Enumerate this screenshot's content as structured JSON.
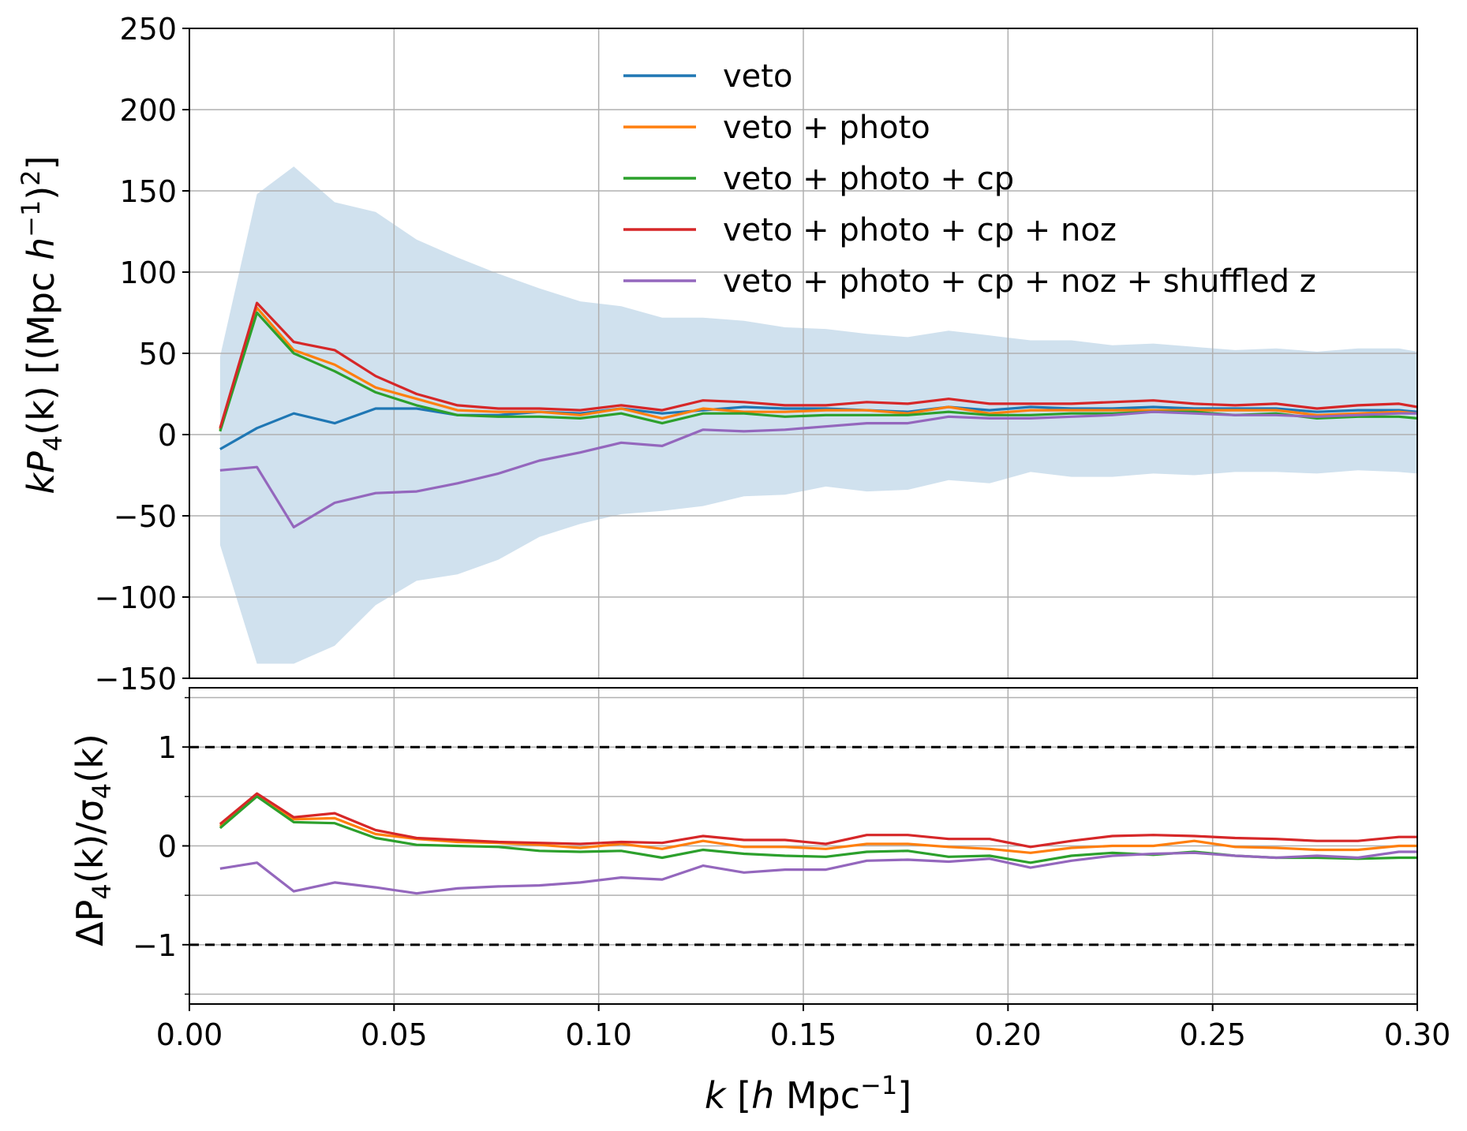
{
  "chart_data": [
    {
      "type": "line",
      "panel": "top",
      "ylabel": "kP4(k) [(Mpc h^-1)^2]",
      "xlim": [
        0.0,
        0.3
      ],
      "ylim": [
        -150,
        250
      ],
      "xticks": [
        "0.00",
        "0.05",
        "0.10",
        "0.15",
        "0.20",
        "0.25",
        "0.30"
      ],
      "yticks": [
        {
          "value": 250,
          "label": "250"
        },
        {
          "value": 200,
          "label": "200"
        },
        {
          "value": 150,
          "label": "150"
        },
        {
          "value": 100,
          "label": "100"
        },
        {
          "value": 50,
          "label": "50"
        },
        {
          "value": 0,
          "label": "0"
        },
        {
          "value": -50,
          "label": "−50"
        },
        {
          "value": -100,
          "label": "−100"
        },
        {
          "value": -150,
          "label": "−150"
        }
      ],
      "grid": true,
      "legend_position": "top-center",
      "x": [
        0.0075,
        0.0165,
        0.0255,
        0.0355,
        0.0455,
        0.0555,
        0.0655,
        0.0755,
        0.0855,
        0.0955,
        0.1055,
        0.1155,
        0.1255,
        0.1355,
        0.1455,
        0.1555,
        0.1655,
        0.1755,
        0.1855,
        0.1955,
        0.2055,
        0.2155,
        0.2255,
        0.2355,
        0.2455,
        0.2555,
        0.2655,
        0.2755,
        0.2855,
        0.2955,
        0.3
      ],
      "band": {
        "name": "uncertainty",
        "color": "#d0e1ee",
        "upper": [
          48,
          148,
          165,
          143,
          137,
          120,
          109,
          99,
          90,
          82,
          79,
          72,
          72,
          70,
          66,
          65,
          62,
          60,
          64,
          61,
          58,
          58,
          55,
          56,
          54,
          52,
          53,
          51,
          53,
          53,
          51
        ],
        "lower": [
          -68,
          -141,
          -141,
          -130,
          -105,
          -90,
          -86,
          -77,
          -63,
          -55,
          -49,
          -47,
          -44,
          -38,
          -37,
          -32,
          -35,
          -34,
          -28,
          -30,
          -23,
          -26,
          -26,
          -24,
          -25,
          -23,
          -23,
          -24,
          -22,
          -23,
          -24
        ]
      },
      "series": [
        {
          "name": "veto",
          "color": "#1f77b4",
          "values": [
            -9,
            4,
            13,
            7,
            16,
            16,
            12,
            12,
            14,
            13,
            16,
            13,
            15,
            17,
            16,
            16,
            15,
            14,
            17,
            15,
            17,
            16,
            16,
            17,
            16,
            16,
            16,
            14,
            15,
            15,
            14
          ]
        },
        {
          "name": "veto + photo",
          "color": "#ff7f0e",
          "values": [
            3,
            78,
            52,
            43,
            29,
            22,
            15,
            14,
            14,
            12,
            16,
            10,
            16,
            14,
            14,
            15,
            15,
            13,
            17,
            13,
            15,
            15,
            15,
            15,
            15,
            15,
            15,
            12,
            13,
            14,
            13
          ]
        },
        {
          "name": "veto + photo + cp",
          "color": "#2ca02c",
          "values": [
            2,
            75,
            50,
            39,
            26,
            18,
            12,
            11,
            11,
            10,
            13,
            7,
            13,
            13,
            11,
            12,
            12,
            12,
            14,
            12,
            12,
            13,
            13,
            14,
            14,
            12,
            13,
            10,
            11,
            11,
            10
          ]
        },
        {
          "name": "veto + photo + cp + noz",
          "color": "#d62728",
          "values": [
            4,
            81,
            57,
            52,
            36,
            25,
            18,
            16,
            16,
            15,
            18,
            15,
            21,
            20,
            18,
            18,
            20,
            19,
            22,
            19,
            19,
            19,
            20,
            21,
            19,
            18,
            19,
            16,
            18,
            19,
            17
          ]
        },
        {
          "name": "veto + photo + cp + noz + shuffled z",
          "color": "#9467bd",
          "values": [
            -22,
            -20,
            -57,
            -42,
            -36,
            -35,
            -30,
            -24,
            -16,
            -11,
            -5,
            -7,
            3,
            2,
            3,
            5,
            7,
            7,
            11,
            10,
            10,
            11,
            12,
            14,
            13,
            12,
            12,
            11,
            12,
            13,
            13
          ]
        }
      ]
    },
    {
      "type": "line",
      "panel": "bottom",
      "xlabel": "k [h Mpc^-1]",
      "ylabel": "ΔP4(k)/σ4(k)",
      "xlim": [
        0.0,
        0.3
      ],
      "ylim": [
        -1.6,
        1.6
      ],
      "xticks": [
        "0.00",
        "0.05",
        "0.10",
        "0.15",
        "0.20",
        "0.25",
        "0.30"
      ],
      "yticks": [
        {
          "value": 1,
          "label": "1"
        },
        {
          "value": 0,
          "label": "0"
        },
        {
          "value": -1,
          "label": "−1"
        }
      ],
      "reference_lines": [
        1,
        -1
      ],
      "grid": true,
      "x": [
        0.0075,
        0.0165,
        0.0255,
        0.0355,
        0.0455,
        0.0555,
        0.0655,
        0.0755,
        0.0855,
        0.0955,
        0.1055,
        0.1155,
        0.1255,
        0.1355,
        0.1455,
        0.1555,
        0.1655,
        0.1755,
        0.1855,
        0.1955,
        0.2055,
        0.2155,
        0.2255,
        0.2355,
        0.2455,
        0.2555,
        0.2655,
        0.2755,
        0.2855,
        0.2955,
        0.3
      ],
      "series": [
        {
          "name": "veto + photo",
          "color": "#ff7f0e",
          "values": [
            0.2,
            0.52,
            0.27,
            0.28,
            0.12,
            0.07,
            0.04,
            0.03,
            0.01,
            -0.02,
            0.02,
            -0.03,
            0.05,
            -0.01,
            -0.01,
            -0.03,
            0.02,
            0.02,
            -0.01,
            -0.03,
            -0.07,
            -0.02,
            0.0,
            0.0,
            0.05,
            -0.01,
            -0.02,
            -0.04,
            -0.04,
            0.0,
            0.0
          ]
        },
        {
          "name": "veto + photo + cp",
          "color": "#2ca02c",
          "values": [
            0.18,
            0.5,
            0.24,
            0.23,
            0.08,
            0.01,
            0.0,
            -0.01,
            -0.05,
            -0.06,
            -0.05,
            -0.12,
            -0.04,
            -0.08,
            -0.1,
            -0.11,
            -0.06,
            -0.05,
            -0.11,
            -0.1,
            -0.17,
            -0.1,
            -0.07,
            -0.09,
            -0.06,
            -0.1,
            -0.12,
            -0.12,
            -0.13,
            -0.12,
            -0.12
          ]
        },
        {
          "name": "veto + photo + cp + noz",
          "color": "#d62728",
          "values": [
            0.22,
            0.53,
            0.29,
            0.33,
            0.16,
            0.08,
            0.06,
            0.04,
            0.03,
            0.02,
            0.04,
            0.03,
            0.1,
            0.06,
            0.06,
            0.02,
            0.11,
            0.11,
            0.07,
            0.07,
            -0.01,
            0.05,
            0.1,
            0.11,
            0.1,
            0.08,
            0.07,
            0.05,
            0.05,
            0.09,
            0.09
          ]
        },
        {
          "name": "veto + photo + cp + noz + shuffled z",
          "color": "#9467bd",
          "values": [
            -0.23,
            -0.17,
            -0.46,
            -0.37,
            -0.42,
            -0.48,
            -0.43,
            -0.41,
            -0.4,
            -0.37,
            -0.32,
            -0.34,
            -0.2,
            -0.27,
            -0.24,
            -0.24,
            -0.15,
            -0.14,
            -0.16,
            -0.13,
            -0.22,
            -0.15,
            -0.1,
            -0.08,
            -0.07,
            -0.1,
            -0.12,
            -0.1,
            -0.12,
            -0.06,
            -0.06
          ]
        }
      ]
    }
  ],
  "axes_text": {
    "top_ylabel_main": "kP",
    "top_ylabel_sub": "4",
    "top_ylabel_rest": "(k) [(Mpc ",
    "top_ylabel_h": "h",
    "top_ylabel_sup": "−1",
    "top_ylabel_close": ")",
    "top_ylabel_sup2": "2",
    "top_ylabel_end": "]",
    "bottom_ylabel_a": "ΔP",
    "bottom_ylabel_sub1": "4",
    "bottom_ylabel_b": "(k)/σ",
    "bottom_ylabel_sub2": "4",
    "bottom_ylabel_c": "(k)",
    "xlabel_k": "k",
    "xlabel_open": " [",
    "xlabel_h": "h",
    "xlabel_mpc": " Mpc",
    "xlabel_sup": "−1",
    "xlabel_close": "]"
  }
}
